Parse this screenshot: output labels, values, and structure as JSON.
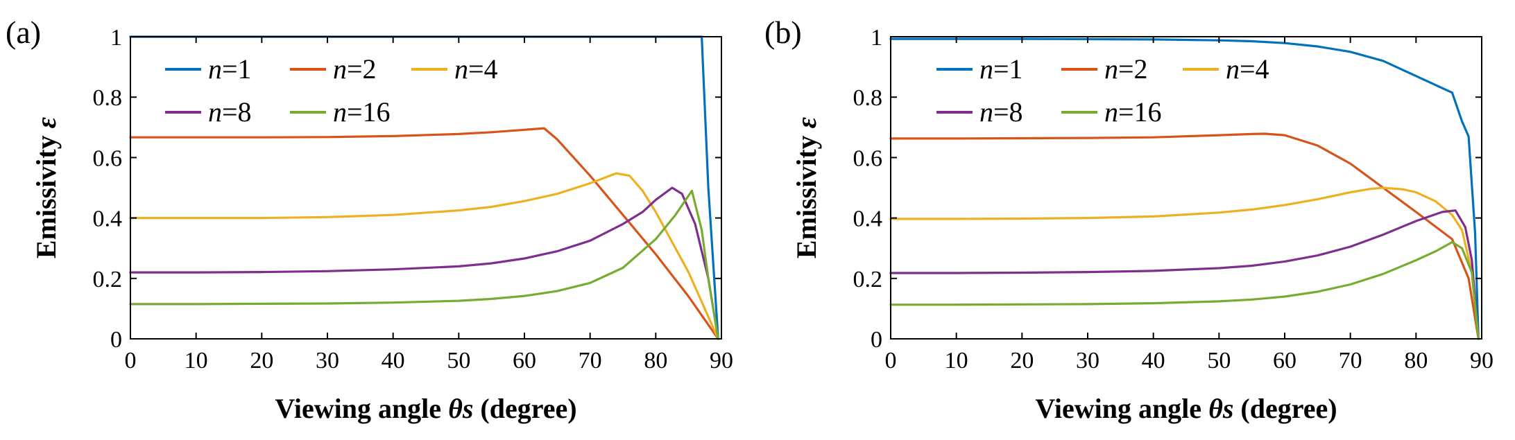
{
  "figure": {
    "colors": {
      "n1": "#0072BD",
      "n2": "#D95319",
      "n4": "#EDB120",
      "n8": "#7E2F8E",
      "n16": "#77AC30",
      "axes": "#000000"
    }
  },
  "chart_data": [
    {
      "panel_label": "(a)",
      "type": "line",
      "xlabel_prefix": "Viewing angle ",
      "xlabel_symbol": "θs",
      "xlabel_suffix": " (degree)",
      "ylabel_prefix": "Emissivity ",
      "ylabel_symbol": "ε",
      "xlim": [
        0,
        90
      ],
      "ylim": [
        0,
        1
      ],
      "xticks": [
        "0",
        "10",
        "20",
        "30",
        "40",
        "50",
        "60",
        "70",
        "80",
        "90"
      ],
      "yticks": [
        "0",
        "0.2",
        "0.4",
        "0.6",
        "0.8",
        "1"
      ],
      "legend_position": "top-left",
      "series": [
        {
          "name": "n=1",
          "var": "n",
          "eq": "=1",
          "color_key": "n1",
          "x": [
            0,
            10,
            20,
            30,
            40,
            50,
            60,
            70,
            80,
            87,
            88,
            89.5
          ],
          "y": [
            1,
            1,
            1,
            1,
            1,
            1,
            1,
            1,
            1,
            1,
            0.5,
            0
          ]
        },
        {
          "name": "n=2",
          "var": "n",
          "eq": "=2",
          "color_key": "n2",
          "x": [
            0,
            10,
            20,
            30,
            40,
            50,
            55,
            60,
            63,
            65,
            70,
            75,
            80,
            85,
            89.5
          ],
          "y": [
            0.667,
            0.667,
            0.667,
            0.668,
            0.671,
            0.678,
            0.684,
            0.692,
            0.697,
            0.66,
            0.54,
            0.41,
            0.28,
            0.14,
            0
          ]
        },
        {
          "name": "n=4",
          "var": "n",
          "eq": "=4",
          "color_key": "n4",
          "x": [
            0,
            10,
            20,
            30,
            40,
            50,
            55,
            60,
            65,
            70,
            74,
            76,
            78,
            80,
            85,
            89.5
          ],
          "y": [
            0.4,
            0.4,
            0.4,
            0.403,
            0.41,
            0.425,
            0.437,
            0.456,
            0.48,
            0.515,
            0.548,
            0.54,
            0.49,
            0.42,
            0.22,
            0
          ]
        },
        {
          "name": "n=8",
          "var": "n",
          "eq": "=8",
          "color_key": "n8",
          "x": [
            0,
            10,
            20,
            30,
            40,
            50,
            55,
            60,
            65,
            70,
            75,
            78,
            80,
            82.5,
            84,
            86,
            88,
            89.5
          ],
          "y": [
            0.22,
            0.22,
            0.221,
            0.224,
            0.23,
            0.24,
            0.25,
            0.266,
            0.29,
            0.325,
            0.38,
            0.42,
            0.46,
            0.5,
            0.48,
            0.38,
            0.2,
            0
          ]
        },
        {
          "name": "n=16",
          "var": "n",
          "eq": "=16",
          "color_key": "n16",
          "x": [
            0,
            10,
            20,
            30,
            40,
            50,
            55,
            60,
            65,
            70,
            75,
            80,
            83,
            85.5,
            87,
            88,
            89.5
          ],
          "y": [
            0.115,
            0.115,
            0.116,
            0.117,
            0.12,
            0.126,
            0.132,
            0.142,
            0.158,
            0.185,
            0.235,
            0.33,
            0.41,
            0.49,
            0.36,
            0.2,
            0
          ]
        }
      ]
    },
    {
      "panel_label": "(b)",
      "type": "line",
      "xlabel_prefix": "Viewing angle ",
      "xlabel_symbol": "θs",
      "xlabel_suffix": " (degree)",
      "ylabel_prefix": "Emissivity ",
      "ylabel_symbol": "ε",
      "xlim": [
        0,
        90
      ],
      "ylim": [
        0,
        1
      ],
      "xticks": [
        "0",
        "10",
        "20",
        "30",
        "40",
        "50",
        "60",
        "70",
        "80",
        "90"
      ],
      "yticks": [
        "0",
        "0.2",
        "0.4",
        "0.6",
        "0.8",
        "1"
      ],
      "legend_position": "top-left",
      "series": [
        {
          "name": "n=1",
          "var": "n",
          "eq": "=1",
          "color_key": "n1",
          "x": [
            0,
            10,
            20,
            30,
            40,
            50,
            55,
            60,
            65,
            70,
            75,
            80,
            83,
            85.5,
            87,
            88,
            89,
            89.5
          ],
          "y": [
            0.993,
            0.993,
            0.993,
            0.992,
            0.991,
            0.988,
            0.985,
            0.979,
            0.968,
            0.95,
            0.92,
            0.87,
            0.84,
            0.815,
            0.72,
            0.67,
            0.35,
            0
          ]
        },
        {
          "name": "n=2",
          "var": "n",
          "eq": "=2",
          "color_key": "n2",
          "x": [
            0,
            10,
            20,
            30,
            40,
            50,
            55,
            57,
            60,
            65,
            70,
            75,
            80,
            85.5,
            88,
            89.5
          ],
          "y": [
            0.663,
            0.663,
            0.664,
            0.665,
            0.667,
            0.674,
            0.678,
            0.679,
            0.674,
            0.64,
            0.58,
            0.5,
            0.42,
            0.33,
            0.2,
            0
          ]
        },
        {
          "name": "n=4",
          "var": "n",
          "eq": "=4",
          "color_key": "n4",
          "x": [
            0,
            10,
            20,
            30,
            40,
            50,
            55,
            60,
            65,
            70,
            73,
            75,
            78,
            80,
            83,
            85.5,
            87,
            88.5,
            89.5
          ],
          "y": [
            0.397,
            0.397,
            0.398,
            0.4,
            0.405,
            0.418,
            0.428,
            0.443,
            0.462,
            0.485,
            0.496,
            0.5,
            0.495,
            0.485,
            0.455,
            0.41,
            0.36,
            0.22,
            0
          ]
        },
        {
          "name": "n=8",
          "var": "n",
          "eq": "=8",
          "color_key": "n8",
          "x": [
            0,
            10,
            20,
            30,
            40,
            50,
            55,
            60,
            65,
            70,
            75,
            80,
            84,
            86,
            87.5,
            88.5,
            89.5
          ],
          "y": [
            0.218,
            0.218,
            0.219,
            0.221,
            0.225,
            0.234,
            0.242,
            0.256,
            0.276,
            0.305,
            0.345,
            0.39,
            0.42,
            0.425,
            0.37,
            0.26,
            0
          ]
        },
        {
          "name": "n=16",
          "var": "n",
          "eq": "=16",
          "color_key": "n16",
          "x": [
            0,
            10,
            20,
            30,
            40,
            50,
            55,
            60,
            65,
            70,
            75,
            80,
            83,
            85.5,
            87,
            88.5,
            89.5
          ],
          "y": [
            0.113,
            0.113,
            0.114,
            0.115,
            0.118,
            0.124,
            0.13,
            0.14,
            0.156,
            0.18,
            0.215,
            0.26,
            0.29,
            0.32,
            0.3,
            0.22,
            0
          ]
        }
      ]
    }
  ]
}
